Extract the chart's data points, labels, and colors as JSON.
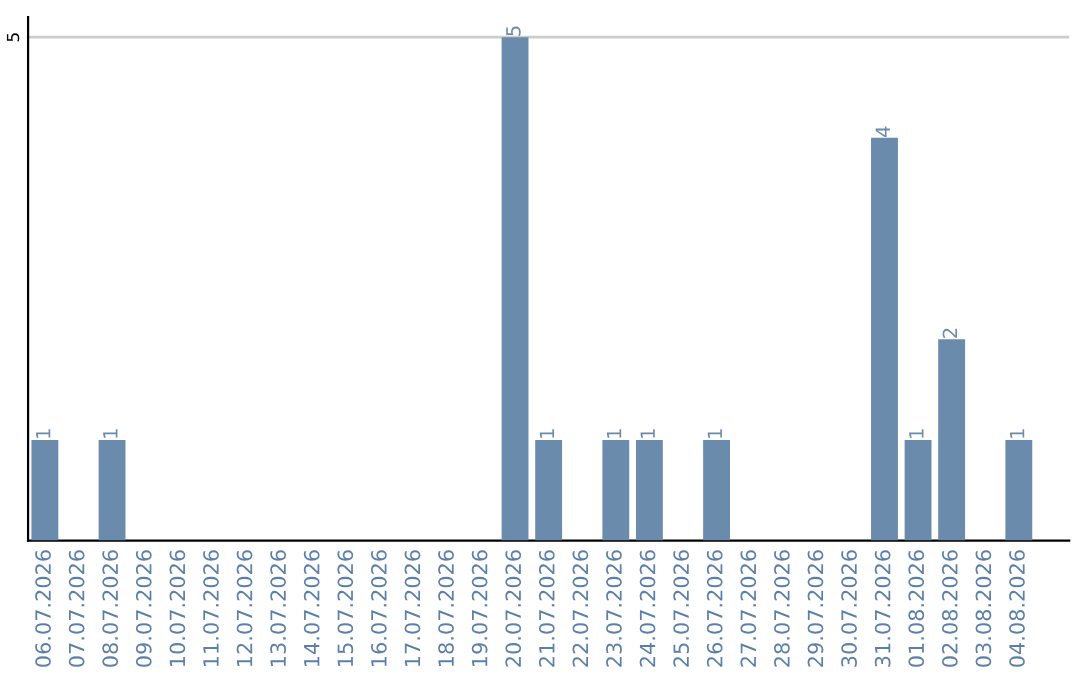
{
  "chart_data": {
    "type": "bar",
    "categories": [
      "06.07.2026",
      "07.07.2026",
      "08.07.2026",
      "09.07.2026",
      "10.07.2026",
      "11.07.2026",
      "12.07.2026",
      "13.07.2026",
      "14.07.2026",
      "15.07.2026",
      "16.07.2026",
      "17.07.2026",
      "18.07.2026",
      "19.07.2026",
      "20.07.2026",
      "21.07.2026",
      "22.07.2026",
      "23.07.2026",
      "24.07.2026",
      "25.07.2026",
      "26.07.2026",
      "27.07.2026",
      "28.07.2026",
      "29.07.2026",
      "30.07.2026",
      "31.07.2026",
      "01.08.2026",
      "02.08.2026",
      "03.08.2026",
      "04.08.2026"
    ],
    "values": [
      1,
      0,
      1,
      0,
      0,
      0,
      0,
      0,
      0,
      0,
      0,
      0,
      0,
      0,
      5,
      1,
      0,
      1,
      1,
      0,
      1,
      0,
      0,
      0,
      0,
      4,
      1,
      2,
      0,
      1
    ],
    "value_labels": [
      "1",
      null,
      "1",
      null,
      null,
      null,
      null,
      null,
      null,
      null,
      null,
      null,
      null,
      null,
      "5",
      "1",
      null,
      "1",
      "1",
      null,
      "1",
      null,
      null,
      null,
      null,
      "4",
      "1",
      "2",
      null,
      "1"
    ],
    "color": "#6a8bab",
    "ylim": [
      0,
      5.2
    ],
    "yticks": [
      5
    ],
    "grid": "y",
    "legend": false
  }
}
